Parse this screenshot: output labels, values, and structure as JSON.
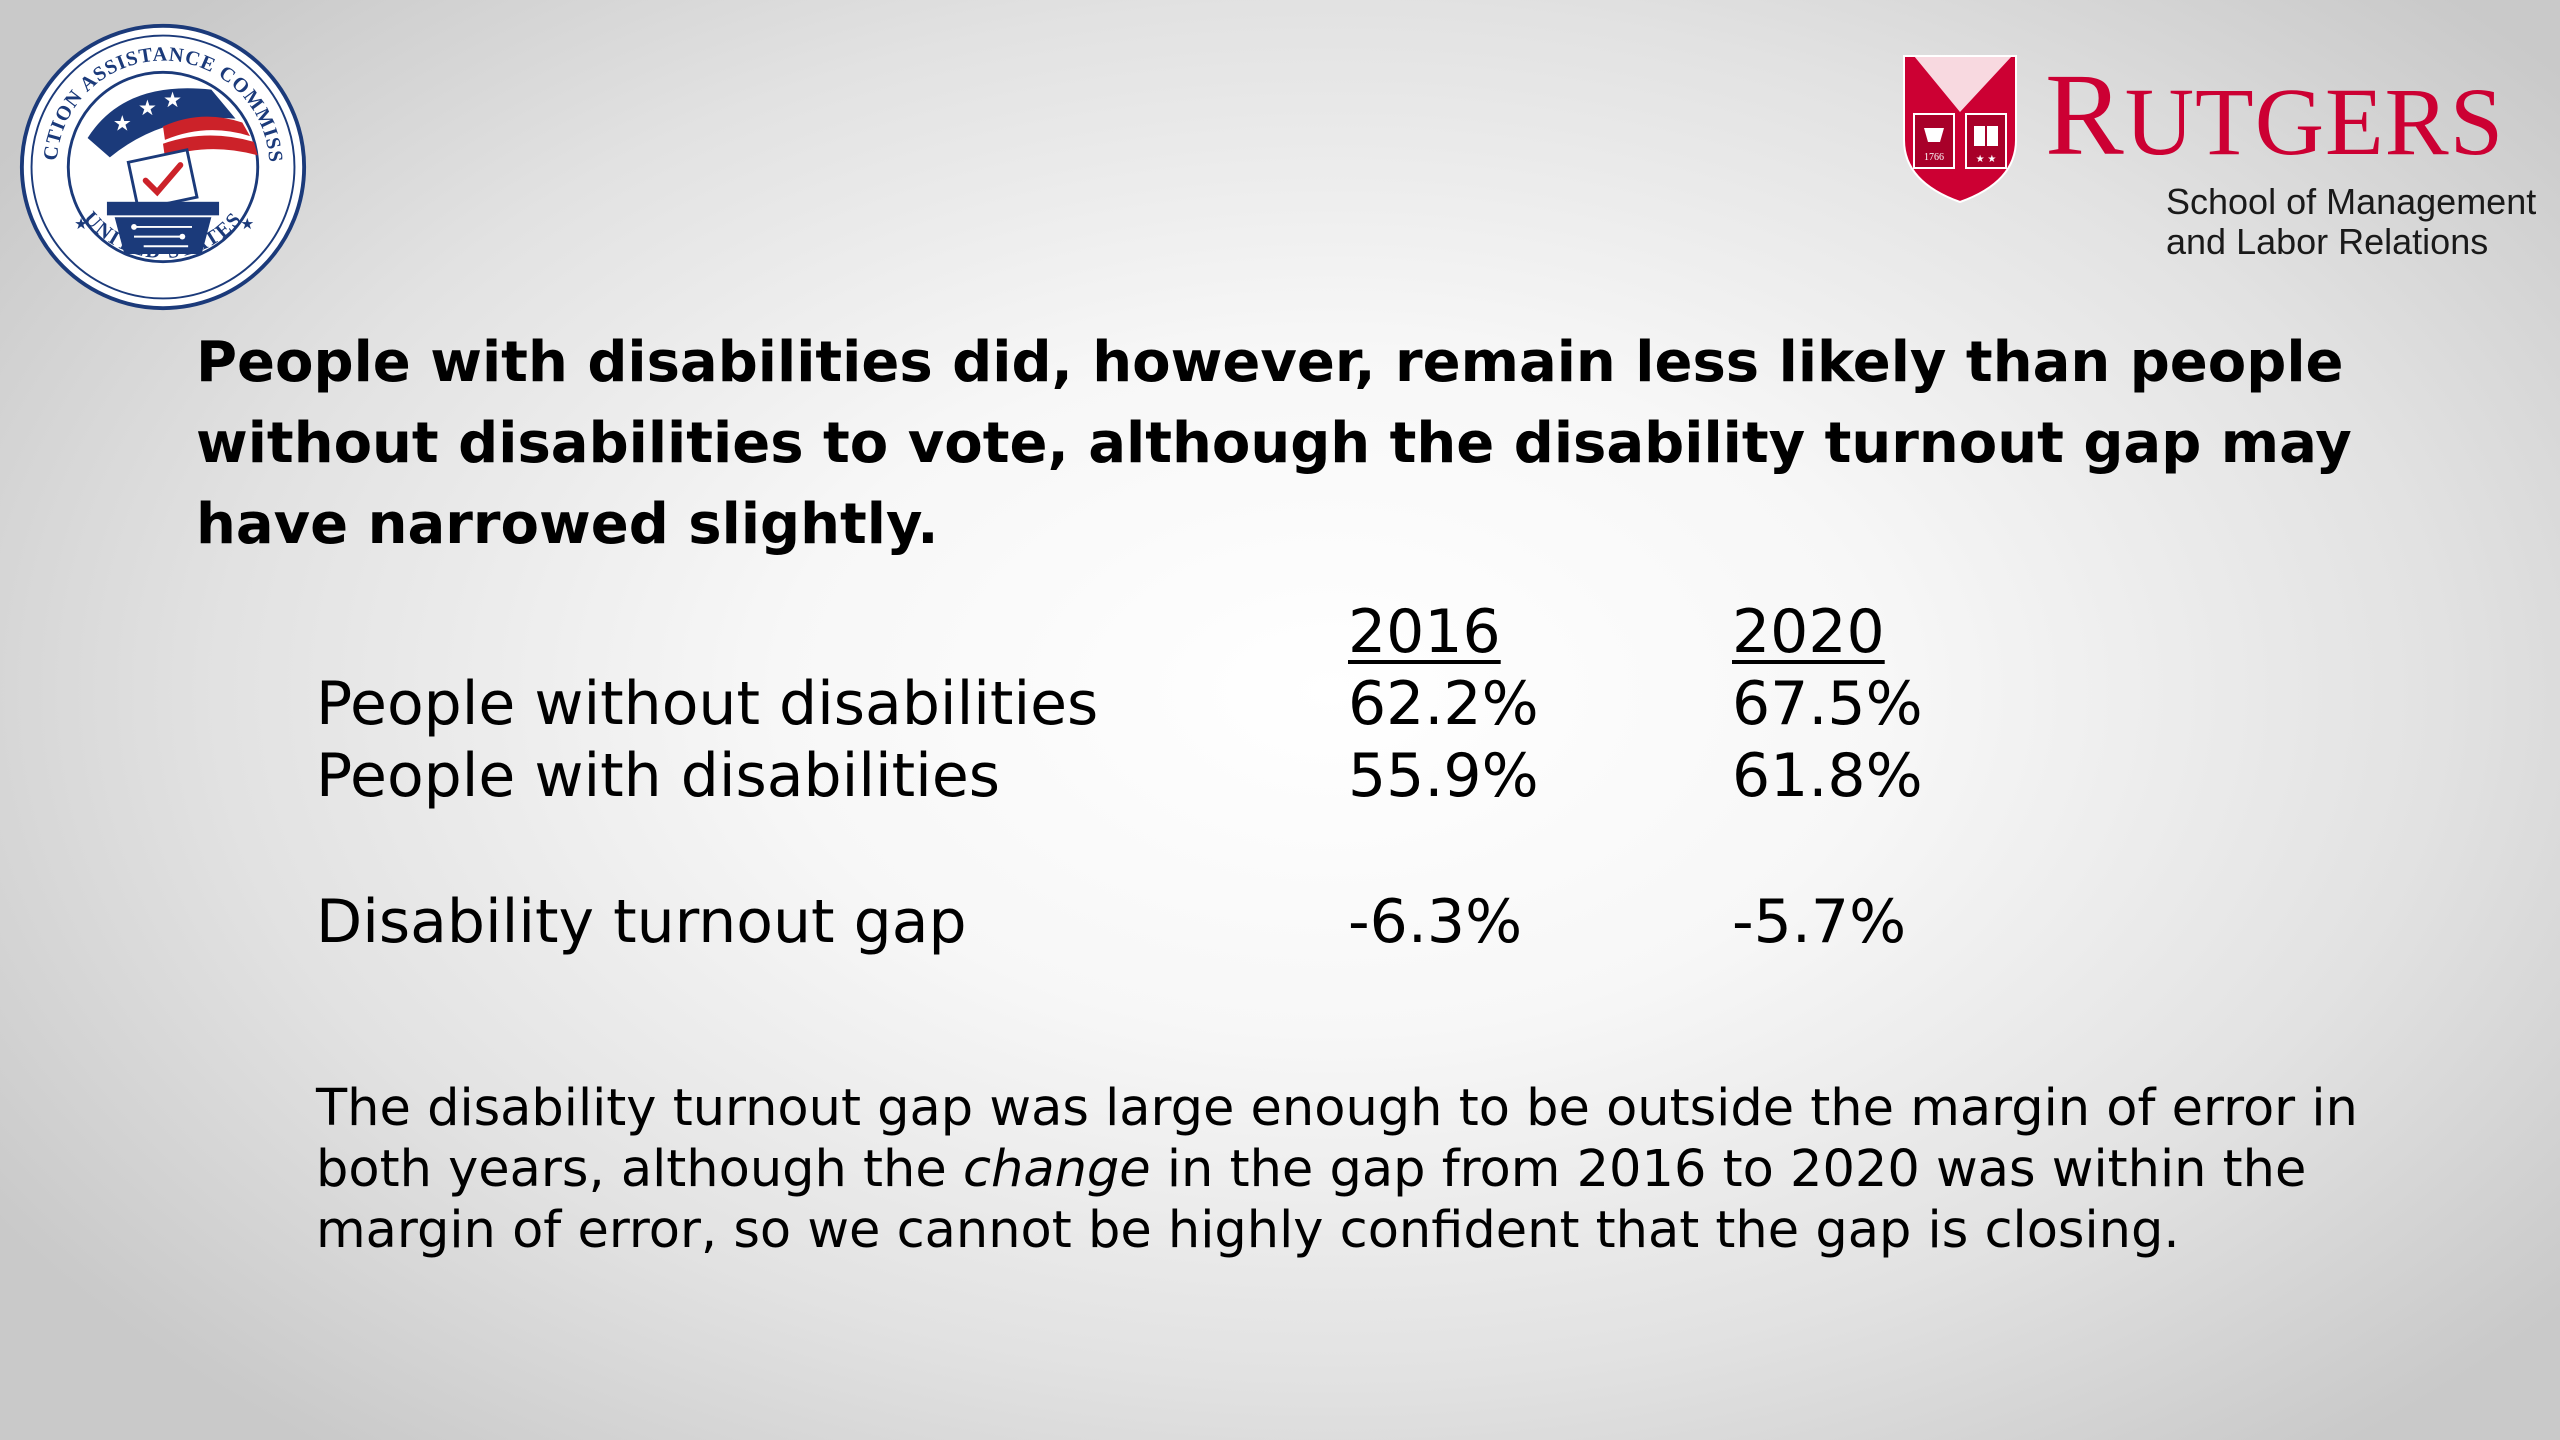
{
  "logos": {
    "eac": {
      "ring_text_top": "ELECTION ASSISTANCE COMMISSION",
      "ring_text_bottom": "UNITED STATES",
      "colors": {
        "navy": "#1b3a7a",
        "red": "#cc2229"
      }
    },
    "rutgers": {
      "wordmark_first": "R",
      "wordmark_rest": "UTGERS",
      "school_line1": "School of Management",
      "school_line2": "and Labor Relations",
      "shield_year": "1766",
      "colors": {
        "scarlet": "#cc0033"
      }
    }
  },
  "headline": "People with disabilities did, however, remain less likely than people without disabilities to vote, although the disability turnout gap may have narrowed slightly.",
  "table": {
    "years": [
      "2016",
      "2020"
    ],
    "rows": [
      {
        "label": "People without disabilities",
        "v2016": "62.2%",
        "v2020": "67.5%"
      },
      {
        "label": "People with disabilities",
        "v2016": "55.9%",
        "v2020": "61.8%"
      }
    ],
    "gap": {
      "label": "Disability turnout gap",
      "v2016": "-6.3%",
      "v2020": "-5.7%"
    }
  },
  "footnote": {
    "part1": "The disability turnout gap was large enough to be outside the margin of error in both years, although the ",
    "emphasis": "change",
    "part2": " in the gap from 2016 to 2020 was within the margin of error, so we cannot be highly confident that the gap is closing."
  }
}
